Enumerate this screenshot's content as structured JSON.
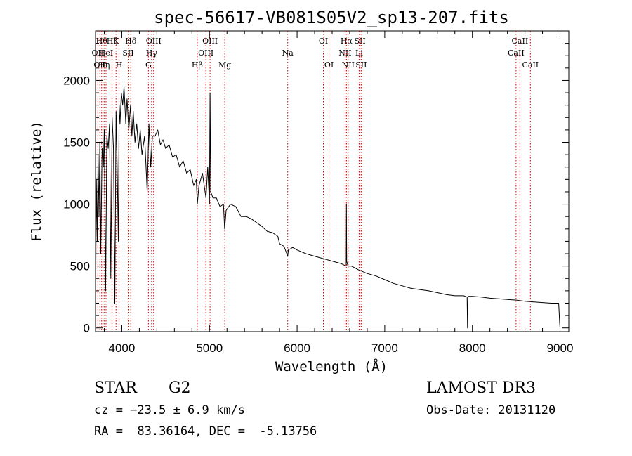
{
  "chart_data": {
    "type": "line",
    "title": "spec-56617-VB081S05V2_sp13-207.fits",
    "xlabel": "Wavelength (Å)",
    "ylabel": "Flux (relative)",
    "xlim": [
      3700,
      9100
    ],
    "ylim": [
      -30,
      2400
    ],
    "xticks": [
      4000,
      5000,
      6000,
      7000,
      8000,
      9000
    ],
    "yticks": [
      0,
      500,
      1000,
      1500,
      2000
    ],
    "grid": false,
    "series": [
      {
        "name": "spectrum",
        "x": [
          3700,
          3710,
          3720,
          3730,
          3740,
          3750,
          3760,
          3775,
          3790,
          3800,
          3815,
          3830,
          3845,
          3860,
          3875,
          3890,
          3905,
          3920,
          3935,
          3950,
          3960,
          3970,
          3980,
          3995,
          4010,
          4025,
          4045,
          4060,
          4080,
          4100,
          4115,
          4130,
          4150,
          4170,
          4190,
          4210,
          4230,
          4260,
          4290,
          4310,
          4330,
          4350,
          4380,
          4410,
          4440,
          4470,
          4500,
          4540,
          4580,
          4620,
          4660,
          4700,
          4740,
          4780,
          4820,
          4850,
          4862,
          4880,
          4920,
          4960,
          4980,
          5000,
          5007,
          5015,
          5040,
          5080,
          5120,
          5160,
          5173,
          5190,
          5240,
          5300,
          5360,
          5420,
          5480,
          5540,
          5600,
          5660,
          5720,
          5780,
          5800,
          5850,
          5893,
          5900,
          5950,
          6000,
          6100,
          6200,
          6300,
          6400,
          6500,
          6560,
          6563,
          6566,
          6580,
          6620,
          6700,
          6800,
          6900,
          7000,
          7100,
          7200,
          7300,
          7400,
          7500,
          7600,
          7700,
          7800,
          7900,
          7940,
          7945,
          7950,
          8000,
          8100,
          8200,
          8300,
          8400,
          8500,
          8600,
          8700,
          8800,
          8900,
          8985,
          8995,
          9000
        ],
        "y": [
          0,
          1200,
          700,
          1400,
          900,
          1500,
          600,
          1450,
          1300,
          1600,
          300,
          1550,
          1450,
          1650,
          400,
          1700,
          1450,
          200,
          1750,
          1200,
          700,
          1800,
          1650,
          1900,
          1800,
          1950,
          1650,
          1850,
          1600,
          1800,
          1550,
          1750,
          1500,
          1650,
          1450,
          1600,
          1400,
          1550,
          1100,
          1650,
          1300,
          1550,
          1550,
          1600,
          1480,
          1520,
          1450,
          1480,
          1380,
          1400,
          1300,
          1350,
          1250,
          1280,
          1150,
          1200,
          1000,
          1150,
          1250,
          1050,
          1300,
          1000,
          1900,
          1100,
          1050,
          1050,
          980,
          1000,
          800,
          950,
          1000,
          980,
          900,
          900,
          880,
          850,
          820,
          780,
          770,
          740,
          680,
          660,
          580,
          630,
          650,
          630,
          600,
          580,
          560,
          540,
          520,
          500,
          1000,
          540,
          500,
          500,
          470,
          440,
          420,
          390,
          360,
          340,
          320,
          310,
          300,
          285,
          270,
          260,
          260,
          250,
          0,
          255,
          255,
          250,
          240,
          235,
          230,
          225,
          215,
          210,
          205,
          200,
          200,
          50,
          0
        ]
      }
    ],
    "lines": [
      {
        "wavelength": 3727,
        "label": "OII",
        "row": 1
      },
      {
        "wavelength": 3750,
        "label": "OII",
        "row": 2
      },
      {
        "wavelength": 3770,
        "label": "Hθ",
        "row": 0
      },
      {
        "wavelength": 3798,
        "label": "Hη",
        "row": 2
      },
      {
        "wavelength": 3820,
        "label": "HeI",
        "row": 1
      },
      {
        "wavelength": 3889,
        "label": "Hζ",
        "row": 0
      },
      {
        "wavelength": 3934,
        "label": "K",
        "row": 0
      },
      {
        "wavelength": 3969,
        "label": "H",
        "row": 2
      },
      {
        "wavelength": 4072,
        "label": "SII",
        "row": 1
      },
      {
        "wavelength": 4102,
        "label": "Hδ",
        "row": 0
      },
      {
        "wavelength": 4304,
        "label": "G",
        "row": 2
      },
      {
        "wavelength": 4340,
        "label": "Hγ",
        "row": 1
      },
      {
        "wavelength": 4363,
        "label": "OIII",
        "row": 0
      },
      {
        "wavelength": 4861,
        "label": "Hβ",
        "row": 2
      },
      {
        "wavelength": 4959,
        "label": "OIII",
        "row": 1
      },
      {
        "wavelength": 5007,
        "label": "OIII",
        "row": 0
      },
      {
        "wavelength": 5175,
        "label": "Mg",
        "row": 2
      },
      {
        "wavelength": 5893,
        "label": "Na",
        "row": 1
      },
      {
        "wavelength": 6300,
        "label": "OI",
        "row": 0
      },
      {
        "wavelength": 6364,
        "label": "OI",
        "row": 2
      },
      {
        "wavelength": 6548,
        "label": "NII",
        "row": 1
      },
      {
        "wavelength": 6563,
        "label": "Hα",
        "row": 0
      },
      {
        "wavelength": 6583,
        "label": "NII",
        "row": 2
      },
      {
        "wavelength": 6708,
        "label": "Li",
        "row": 1
      },
      {
        "wavelength": 6717,
        "label": "SII",
        "row": 0
      },
      {
        "wavelength": 6731,
        "label": "SII",
        "row": 2
      },
      {
        "wavelength": 8498,
        "label": "CaII",
        "row": 1
      },
      {
        "wavelength": 8542,
        "label": "CaII",
        "row": 0
      },
      {
        "wavelength": 8662,
        "label": "CaII",
        "row": 2
      }
    ]
  },
  "info": {
    "object_type": "STAR",
    "subclass": "G2",
    "survey": "LAMOST DR3",
    "cz": "cz = −23.5 ± 6.9 km/s",
    "obs_date": "Obs-Date: 20131120",
    "coords": "RA =  83.36164, DEC =  -5.13756"
  },
  "colors": {
    "line_marker": "#cc0000",
    "spectrum": "#000000",
    "axes": "#000000"
  }
}
